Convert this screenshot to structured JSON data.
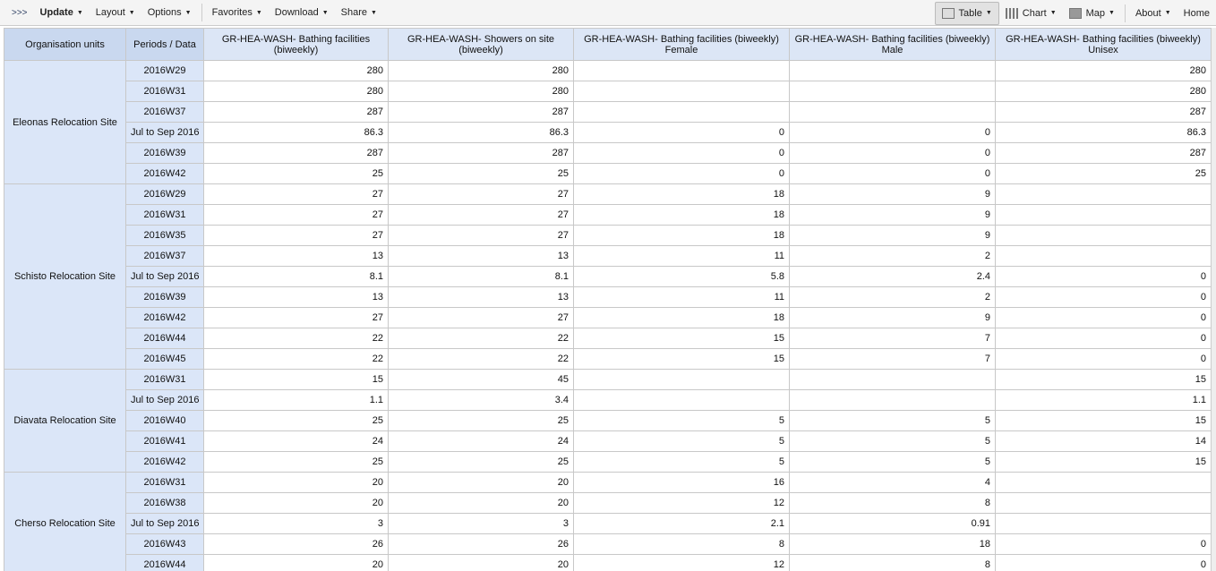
{
  "toolbar": {
    "expand": ">>>",
    "update": "Update",
    "layout": "Layout",
    "options": "Options",
    "favorites": "Favorites",
    "download": "Download",
    "share": "Share",
    "table": "Table",
    "chart": "Chart",
    "map": "Map",
    "about": "About",
    "home": "Home"
  },
  "table": {
    "headers": [
      "Organisation units",
      "Periods / Data",
      "GR-HEA-WASH- Bathing facilities (biweekly)",
      "GR-HEA-WASH- Showers on site (biweekly)",
      "GR-HEA-WASH- Bathing facilities (biweekly) Female",
      "GR-HEA-WASH- Bathing facilities (biweekly) Male",
      "GR-HEA-WASH- Bathing facilities (biweekly) Unisex"
    ],
    "groups": [
      {
        "org": "Eleonas Relocation Site",
        "rows": [
          [
            "2016W29",
            "280",
            "280",
            "",
            "",
            "280"
          ],
          [
            "2016W31",
            "280",
            "280",
            "",
            "",
            "280"
          ],
          [
            "2016W37",
            "287",
            "287",
            "",
            "",
            "287"
          ],
          [
            "Jul to Sep 2016",
            "86.3",
            "86.3",
            "0",
            "0",
            "86.3"
          ],
          [
            "2016W39",
            "287",
            "287",
            "0",
            "0",
            "287"
          ],
          [
            "2016W42",
            "25",
            "25",
            "0",
            "0",
            "25"
          ]
        ]
      },
      {
        "org": "Schisto Relocation Site",
        "rows": [
          [
            "2016W29",
            "27",
            "27",
            "18",
            "9",
            ""
          ],
          [
            "2016W31",
            "27",
            "27",
            "18",
            "9",
            ""
          ],
          [
            "2016W35",
            "27",
            "27",
            "18",
            "9",
            ""
          ],
          [
            "2016W37",
            "13",
            "13",
            "11",
            "2",
            ""
          ],
          [
            "Jul to Sep 2016",
            "8.1",
            "8.1",
            "5.8",
            "2.4",
            "0"
          ],
          [
            "2016W39",
            "13",
            "13",
            "11",
            "2",
            "0"
          ],
          [
            "2016W42",
            "27",
            "27",
            "18",
            "9",
            "0"
          ],
          [
            "2016W44",
            "22",
            "22",
            "15",
            "7",
            "0"
          ],
          [
            "2016W45",
            "22",
            "22",
            "15",
            "7",
            "0"
          ]
        ]
      },
      {
        "org": "Diavata Relocation Site",
        "rows": [
          [
            "2016W31",
            "15",
            "45",
            "",
            "",
            "15"
          ],
          [
            "Jul to Sep 2016",
            "1.1",
            "3.4",
            "",
            "",
            "1.1"
          ],
          [
            "2016W40",
            "25",
            "25",
            "5",
            "5",
            "15"
          ],
          [
            "2016W41",
            "24",
            "24",
            "5",
            "5",
            "14"
          ],
          [
            "2016W42",
            "25",
            "25",
            "5",
            "5",
            "15"
          ]
        ]
      },
      {
        "org": "Cherso Relocation Site",
        "rows": [
          [
            "2016W31",
            "20",
            "20",
            "16",
            "4",
            ""
          ],
          [
            "2016W38",
            "20",
            "20",
            "12",
            "8",
            ""
          ],
          [
            "Jul to Sep 2016",
            "3",
            "3",
            "2.1",
            "0.91",
            ""
          ],
          [
            "2016W43",
            "26",
            "26",
            "8",
            "18",
            "0"
          ],
          [
            "2016W44",
            "20",
            "20",
            "12",
            "8",
            "0"
          ]
        ]
      }
    ]
  }
}
